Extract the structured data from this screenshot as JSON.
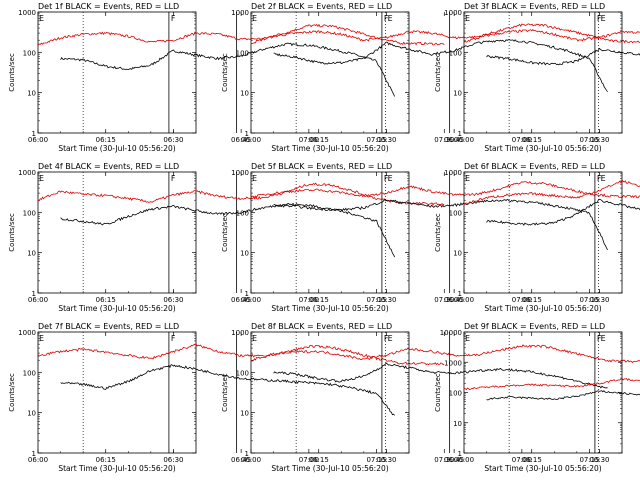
{
  "figure": {
    "background": "#ffffff"
  },
  "colors": {
    "events": "#000000",
    "lld": "#dd0000",
    "axis": "#000000",
    "marker": "#000000"
  },
  "common": {
    "type": "line",
    "xlabel": "Start Time (30-Jul-10 05:56:20)",
    "ylabel": "Counts/sec",
    "x_tick_labels": [
      "06:00",
      "06:15",
      "06:30",
      "06:45",
      "07:00",
      "07:15",
      "07:30"
    ],
    "x_range_minutes": [
      0,
      35
    ],
    "y_scale": "log",
    "dotted_lines_at": [
      "06:10",
      "07:17"
    ],
    "solid_lines_at": [
      "06:29",
      "06:44"
    ],
    "marker_letters": [
      "F",
      "E"
    ]
  },
  "chart_data": [
    {
      "type": "line",
      "title": "Det 1f BLACK = Events, RED = LLD",
      "xlabel": "Start Time (30-Jul-10 05:56:20)",
      "ylabel": "Counts/sec",
      "ylim": [
        1,
        1000
      ],
      "y_tick_labels": [
        "1",
        "10",
        "100",
        "1000"
      ],
      "series": [
        {
          "name": "Events",
          "x": [
            "06:05",
            "06:10",
            "06:15",
            "06:20",
            "06:25",
            "06:30",
            "06:35",
            "06:40",
            "06:45",
            "06:50",
            "06:55",
            "07:00",
            "07:05",
            "07:10",
            "07:15",
            "07:19"
          ],
          "values": [
            70,
            65,
            45,
            38,
            48,
            110,
            85,
            70,
            80,
            120,
            160,
            150,
            120,
            90,
            60,
            8
          ]
        },
        {
          "name": "LLD",
          "x": [
            "06:00",
            "06:05",
            "06:10",
            "06:15",
            "06:20",
            "06:25",
            "06:30",
            "06:35",
            "06:40",
            "06:45",
            "06:50",
            "06:55",
            "07:00",
            "07:05",
            "07:10",
            "07:15",
            "07:20",
            "07:25",
            "07:30"
          ],
          "values": [
            150,
            230,
            280,
            300,
            250,
            180,
            200,
            300,
            280,
            210,
            220,
            310,
            460,
            450,
            330,
            230,
            170,
            165,
            160
          ]
        }
      ]
    },
    {
      "type": "line",
      "title": "Det 2f BLACK = Events, RED = LLD",
      "xlabel": "Start Time (30-Jul-10 05:56:20)",
      "ylabel": "Counts/sec",
      "ylim": [
        1,
        1000
      ],
      "y_tick_labels": [
        "1",
        "10",
        "100",
        "1000"
      ],
      "series": [
        {
          "name": "Events",
          "x": [
            "06:05",
            "06:10",
            "06:15",
            "06:20",
            "06:25",
            "06:30",
            "06:35",
            "06:40",
            "06:45",
            "06:50",
            "06:55",
            "07:00",
            "07:05",
            "07:10",
            "07:15",
            "07:19"
          ],
          "values": [
            90,
            75,
            55,
            55,
            70,
            170,
            120,
            90,
            110,
            170,
            200,
            190,
            150,
            110,
            70,
            10
          ]
        },
        {
          "name": "LLD",
          "x": [
            "06:00",
            "06:05",
            "06:10",
            "06:15",
            "06:20",
            "06:25",
            "06:30",
            "06:35",
            "06:40",
            "06:45",
            "06:50",
            "06:55",
            "07:00",
            "07:05",
            "07:10",
            "07:15",
            "07:20",
            "07:25",
            "07:30"
          ],
          "values": [
            170,
            250,
            300,
            330,
            280,
            200,
            230,
            330,
            300,
            230,
            240,
            340,
            480,
            470,
            350,
            260,
            190,
            185,
            180
          ]
        }
      ]
    },
    {
      "type": "line",
      "title": "Det 3f BLACK = Events, RED = LLD",
      "xlabel": "Start Time (30-Jul-10 05:56:20)",
      "ylabel": "Counts/sec",
      "ylim": [
        1,
        1000
      ],
      "y_tick_labels": [
        "1",
        "10",
        "100",
        "1000"
      ],
      "series": [
        {
          "name": "Events",
          "x": [
            "06:05",
            "06:10",
            "06:15",
            "06:20",
            "06:25",
            "06:30",
            "06:35",
            "06:40",
            "06:45",
            "06:50",
            "06:55",
            "07:00",
            "07:05",
            "07:10",
            "07:15",
            "07:19"
          ],
          "values": [
            80,
            70,
            55,
            50,
            60,
            120,
            100,
            85,
            100,
            150,
            180,
            170,
            140,
            100,
            70,
            12
          ]
        },
        {
          "name": "LLD",
          "x": [
            "06:00",
            "06:05",
            "06:10",
            "06:15",
            "06:20",
            "06:25",
            "06:30",
            "06:35",
            "06:40",
            "06:45",
            "06:50",
            "06:55",
            "07:00",
            "07:05",
            "07:10",
            "07:15",
            "07:20",
            "07:25",
            "07:30"
          ],
          "values": [
            180,
            260,
            320,
            350,
            280,
            200,
            230,
            330,
            300,
            230,
            240,
            350,
            500,
            490,
            360,
            260,
            200,
            190,
            185
          ]
        }
      ]
    },
    {
      "type": "line",
      "title": "Det 4f BLACK = Events, RED = LLD",
      "xlabel": "Start Time (30-Jul-10 05:56:20)",
      "ylabel": "Counts/sec",
      "ylim": [
        1,
        1000
      ],
      "y_tick_labels": [
        "1",
        "10",
        "100",
        "1000"
      ],
      "series": [
        {
          "name": "Events",
          "x": [
            "06:05",
            "06:10",
            "06:15",
            "06:20",
            "06:25",
            "06:30",
            "06:35",
            "06:40",
            "06:45",
            "06:50",
            "06:55",
            "07:00",
            "07:05",
            "07:10",
            "07:15",
            "07:19"
          ],
          "values": [
            70,
            60,
            50,
            80,
            120,
            140,
            110,
            90,
            100,
            130,
            160,
            150,
            120,
            90,
            60,
            8
          ]
        },
        {
          "name": "LLD",
          "x": [
            "06:00",
            "06:05",
            "06:10",
            "06:15",
            "06:20",
            "06:25",
            "06:30",
            "06:35",
            "06:40",
            "06:45",
            "06:50",
            "06:55",
            "07:00",
            "07:05",
            "07:10",
            "07:15",
            "07:20",
            "07:25",
            "07:30"
          ],
          "values": [
            200,
            330,
            280,
            260,
            220,
            180,
            270,
            330,
            250,
            220,
            230,
            320,
            500,
            480,
            330,
            220,
            170,
            165,
            160
          ]
        }
      ]
    },
    {
      "type": "line",
      "title": "Det 5f BLACK = Events, RED = LLD",
      "xlabel": "Start Time (30-Jul-10 05:56:20)",
      "ylabel": "Counts/sec",
      "ylim": [
        1,
        1000
      ],
      "y_tick_labels": [
        "1",
        "10",
        "100",
        "1000"
      ],
      "series": [
        {
          "name": "Events",
          "x": [
            "06:05",
            "06:10",
            "06:15",
            "06:20",
            "06:25",
            "06:30",
            "06:35",
            "06:40",
            "06:45",
            "06:50",
            "06:55",
            "07:00",
            "07:05",
            "07:10",
            "07:15",
            "07:19"
          ],
          "values": [
            150,
            140,
            120,
            115,
            130,
            200,
            170,
            140,
            150,
            180,
            200,
            190,
            160,
            130,
            95,
            12
          ]
        },
        {
          "name": "LLD",
          "x": [
            "06:00",
            "06:05",
            "06:10",
            "06:15",
            "06:20",
            "06:25",
            "06:30",
            "06:35",
            "06:40",
            "06:45",
            "06:50",
            "06:55",
            "07:00",
            "07:05",
            "07:10",
            "07:15",
            "07:20",
            "07:25",
            "07:30"
          ],
          "values": [
            240,
            300,
            340,
            360,
            310,
            250,
            300,
            450,
            330,
            270,
            280,
            380,
            560,
            520,
            380,
            290,
            250,
            245,
            240
          ]
        }
      ]
    },
    {
      "type": "line",
      "title": "Det 6f BLACK = Events, RED = LLD",
      "xlabel": "Start Time (30-Jul-10 05:56:20)",
      "ylabel": "Counts/sec",
      "ylim": [
        1,
        1000
      ],
      "y_tick_labels": [
        "1",
        "10",
        "100",
        "1000"
      ],
      "series": [
        {
          "name": "Events",
          "x": [
            "06:05",
            "06:10",
            "06:15",
            "06:20",
            "06:25",
            "06:30",
            "06:35",
            "06:40",
            "06:45",
            "06:50",
            "06:55",
            "07:00",
            "07:05",
            "07:10",
            "07:15",
            "07:19"
          ],
          "values": [
            60,
            55,
            50,
            55,
            90,
            200,
            150,
            110,
            95,
            90,
            85,
            80,
            70,
            60,
            40,
            10
          ]
        },
        {
          "name": "LLD",
          "x": [
            "06:00",
            "06:05",
            "06:10",
            "06:15",
            "06:20",
            "06:25",
            "06:30",
            "06:35",
            "06:40",
            "06:45",
            "06:50",
            "06:55",
            "07:00",
            "07:05",
            "07:10",
            "07:15",
            "07:20",
            "07:25",
            "07:30"
          ],
          "values": [
            160,
            230,
            270,
            290,
            260,
            230,
            350,
            600,
            420,
            300,
            280,
            360,
            480,
            470,
            340,
            230,
            170,
            165,
            160
          ]
        }
      ]
    },
    {
      "type": "line",
      "title": "Det 7f BLACK = Events, RED = LLD",
      "xlabel": "Start Time (30-Jul-10 05:56:20)",
      "ylabel": "Counts/sec",
      "ylim": [
        1,
        1000
      ],
      "y_tick_labels": [
        "1",
        "10",
        "100",
        "1000"
      ],
      "series": [
        {
          "name": "Events",
          "x": [
            "06:05",
            "06:10",
            "06:15",
            "06:20",
            "06:25",
            "06:30",
            "06:35",
            "06:40",
            "06:45",
            "06:50",
            "06:55",
            "07:00",
            "07:05",
            "07:10",
            "07:15",
            "07:19"
          ],
          "values": [
            55,
            50,
            40,
            60,
            110,
            150,
            120,
            90,
            70,
            65,
            60,
            55,
            50,
            40,
            30,
            8
          ]
        },
        {
          "name": "LLD",
          "x": [
            "06:00",
            "06:05",
            "06:10",
            "06:15",
            "06:20",
            "06:25",
            "06:30",
            "06:35",
            "06:40",
            "06:45",
            "06:50",
            "06:55",
            "07:00",
            "07:05",
            "07:10",
            "07:15",
            "07:20",
            "07:25",
            "07:30"
          ],
          "values": [
            260,
            330,
            370,
            320,
            260,
            220,
            330,
            480,
            330,
            260,
            250,
            320,
            440,
            420,
            310,
            220,
            170,
            165,
            160
          ]
        }
      ]
    },
    {
      "type": "line",
      "title": "Det 8f BLACK = Events, RED = LLD",
      "xlabel": "Start Time (30-Jul-10 05:56:20)",
      "ylabel": "Counts/sec",
      "ylim": [
        1,
        1000
      ],
      "y_tick_labels": [
        "1",
        "10",
        "100",
        "1000"
      ],
      "series": [
        {
          "name": "Events",
          "x": [
            "06:05",
            "06:10",
            "06:15",
            "06:20",
            "06:25",
            "06:30",
            "06:35",
            "06:40",
            "06:45",
            "06:50",
            "06:55",
            "07:00",
            "07:05",
            "07:10",
            "07:15",
            "07:19"
          ],
          "values": [
            100,
            90,
            70,
            60,
            80,
            160,
            130,
            100,
            95,
            110,
            120,
            110,
            90,
            70,
            50,
            40
          ]
        },
        {
          "name": "LLD",
          "x": [
            "06:00",
            "06:05",
            "06:10",
            "06:15",
            "06:20",
            "06:25",
            "06:30",
            "06:35",
            "06:40",
            "06:45",
            "06:50",
            "06:55",
            "07:00",
            "07:05",
            "07:10",
            "07:15",
            "07:20",
            "07:25",
            "07:30"
          ],
          "values": [
            200,
            280,
            320,
            330,
            270,
            210,
            270,
            380,
            330,
            260,
            270,
            350,
            450,
            440,
            330,
            240,
            190,
            185,
            180
          ]
        }
      ]
    },
    {
      "type": "line",
      "title": "Det 9f BLACK = Events, RED = LLD",
      "xlabel": "Start Time (30-Jul-10 05:56:20)",
      "ylabel": "Counts/sec",
      "ylim": [
        1,
        10000
      ],
      "y_tick_labels": [
        "1",
        "10",
        "100",
        "1000",
        "10000"
      ],
      "series": [
        {
          "name": "Events",
          "x": [
            "06:05",
            "06:10",
            "06:15",
            "06:20",
            "06:25",
            "06:30",
            "06:35",
            "06:40",
            "06:45",
            "06:50",
            "06:55",
            "07:00",
            "07:05",
            "07:10",
            "07:15",
            "07:19"
          ],
          "values": [
            60,
            70,
            65,
            60,
            75,
            110,
            95,
            80,
            90,
            110,
            130,
            120,
            95,
            70,
            50,
            20
          ]
        },
        {
          "name": "LLD",
          "x": [
            "06:00",
            "06:05",
            "06:10",
            "06:15",
            "06:20",
            "06:25",
            "06:30",
            "06:35",
            "06:40",
            "06:45",
            "06:50",
            "06:55",
            "07:00",
            "07:05",
            "07:10",
            "07:15",
            "07:20",
            "07:25",
            "07:30"
          ],
          "values": [
            130,
            150,
            170,
            180,
            170,
            160,
            200,
            280,
            230,
            200,
            210,
            260,
            320,
            310,
            240,
            180,
            140,
            135,
            130
          ]
        }
      ]
    }
  ]
}
